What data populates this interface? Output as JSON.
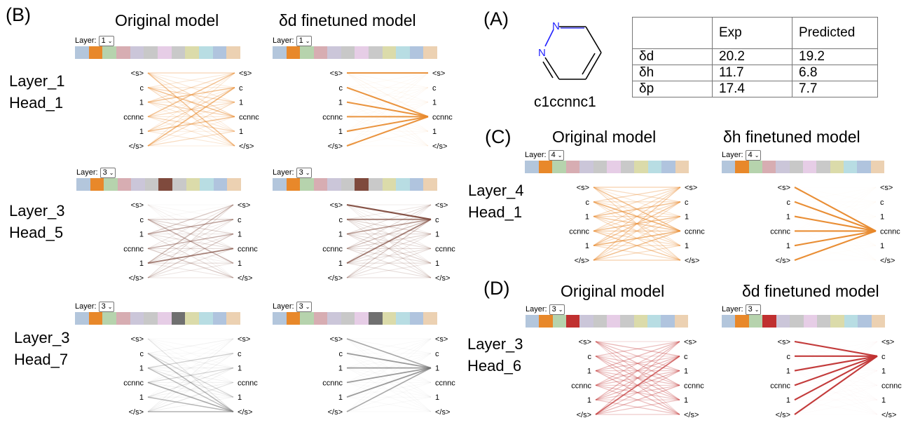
{
  "palette": [
    "#b3c6dc",
    "#e8882a",
    "#b6d3ad",
    "#d7adb2",
    "#cbc6d9",
    "#c8c8c8",
    "#e6cde6",
    "#c9c9c9",
    "#dbdbaa",
    "#b8dde3",
    "#b0c4de",
    "#ecd1b2"
  ],
  "highlight_colors": {
    "orange": "#e8882a",
    "brown": "#7f4a3d",
    "gray": "#707070",
    "red": "#c03030"
  },
  "tokens": [
    "<s>",
    "c",
    "1",
    "ccnnc",
    "1",
    "</s>"
  ],
  "layer_label": "Layer:",
  "panel_B": {
    "letter": "(B)",
    "original_title": "Original  model",
    "finetuned_title": "δd finetuned model",
    "rows": [
      {
        "side_line1": "Layer_1",
        "side_line2": "Head_1",
        "layer_value": "1",
        "highlight": "orange",
        "highlight_index": 1
      },
      {
        "side_line1": "Layer_3",
        "side_line2": "Head_5",
        "layer_value": "3",
        "highlight": "brown",
        "highlight_index": 6
      },
      {
        "side_line1": "Layer_3",
        "side_line2": "Head_7",
        "layer_value": "3",
        "highlight": "gray",
        "highlight_index": 7
      }
    ]
  },
  "panel_A": {
    "letter": "(A)",
    "smiles": "c1ccnnc1",
    "atom_labels": [
      "N",
      "N"
    ],
    "table": {
      "header": [
        "",
        "Exp",
        "Predicted"
      ],
      "rows": [
        [
          "δd",
          "20.2",
          "19.2"
        ],
        [
          "δh",
          "11.7",
          "6.8"
        ],
        [
          "δp",
          "17.4",
          "7.7"
        ]
      ]
    }
  },
  "panel_C": {
    "letter": "(C)",
    "original_title": "Original  model",
    "finetuned_title": "δh finetuned model",
    "side_line1": "Layer_4",
    "side_line2": "Head_1",
    "layer_value": "4",
    "highlight": "orange",
    "highlight_index": 1
  },
  "panel_D": {
    "letter": "(D)",
    "original_title": "Original  model",
    "finetuned_title": "δd finetuned model",
    "side_line1": "Layer_3",
    "side_line2": "Head_6",
    "layer_value": "3",
    "highlight": "red",
    "highlight_index": 3
  }
}
